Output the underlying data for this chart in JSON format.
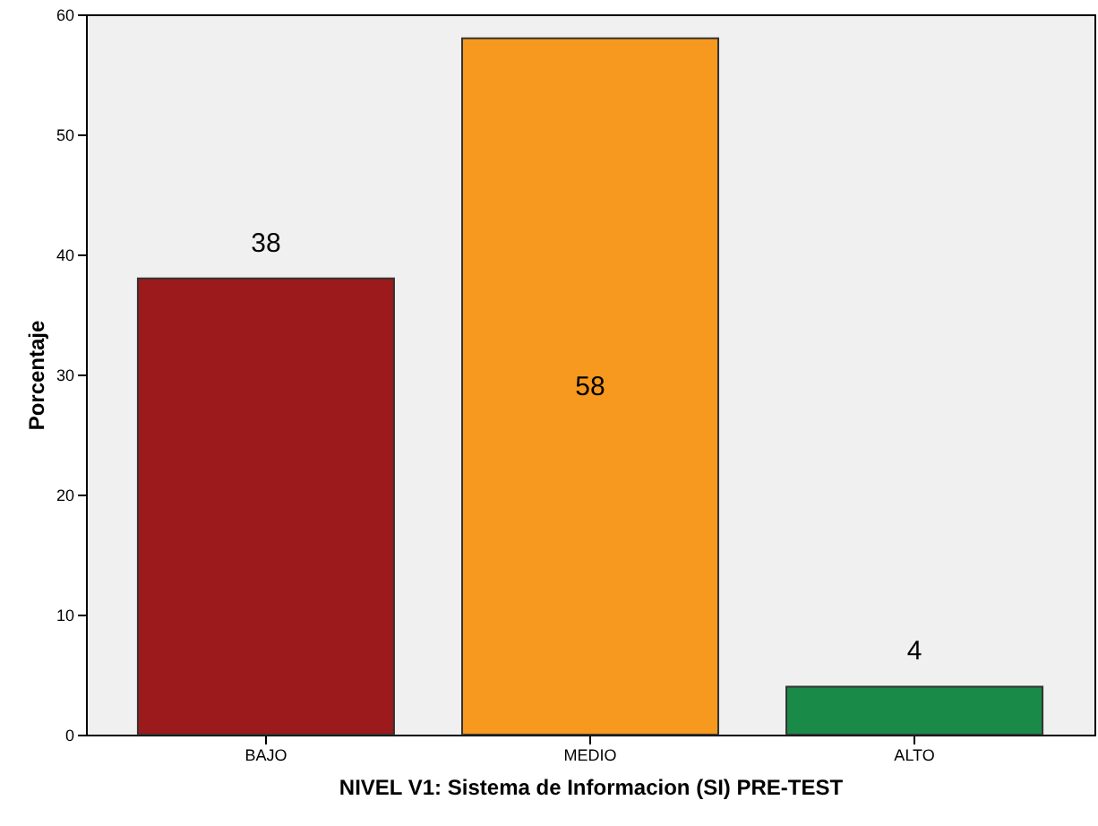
{
  "chart_data": {
    "type": "bar",
    "xlabel": "NIVEL V1: Sistema de Informacion (SI) PRE-TEST",
    "ylabel": "Porcentaje",
    "categories": [
      "BAJO",
      "MEDIO",
      "ALTO"
    ],
    "values": [
      38,
      58,
      4
    ],
    "colors": [
      "#9c1a1c",
      "#f7991e",
      "#1a8a48"
    ],
    "ylim": [
      0,
      60
    ],
    "yticks": [
      0,
      10,
      20,
      30,
      40,
      50,
      60
    ],
    "data_labels": true,
    "grid": false
  }
}
